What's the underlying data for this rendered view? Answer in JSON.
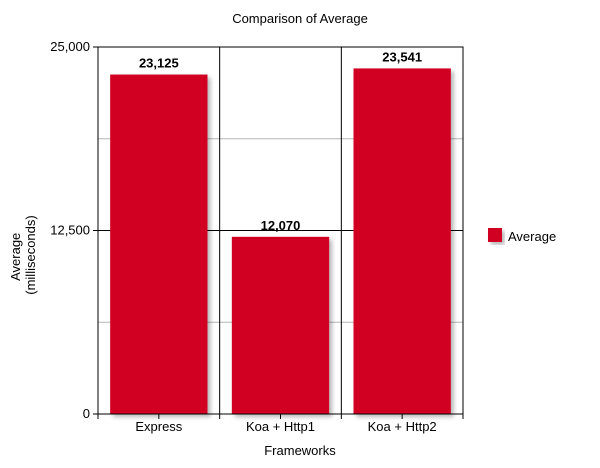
{
  "chart_data": {
    "type": "bar",
    "title": "Comparison of Average",
    "xlabel": "Frameworks",
    "ylabel": [
      "Average",
      "(milliseconds)"
    ],
    "categories": [
      "Express",
      "Koa + Http1",
      "Koa + Http2"
    ],
    "series": [
      {
        "name": "Average",
        "values": [
          23125,
          12070,
          23541
        ],
        "data_labels": [
          "23,125",
          "12,070",
          "23,541"
        ],
        "color": "#d10023"
      }
    ],
    "ylim": [
      0,
      25000
    ],
    "yticks": [
      0,
      12500,
      25000
    ],
    "ytick_labels": [
      "0",
      "12,500",
      "25,000"
    ],
    "minor_gridlines": [
      6250,
      18750
    ],
    "grid": true,
    "legend": {
      "position": "right",
      "label": "Average",
      "color": "#d10023"
    }
  }
}
